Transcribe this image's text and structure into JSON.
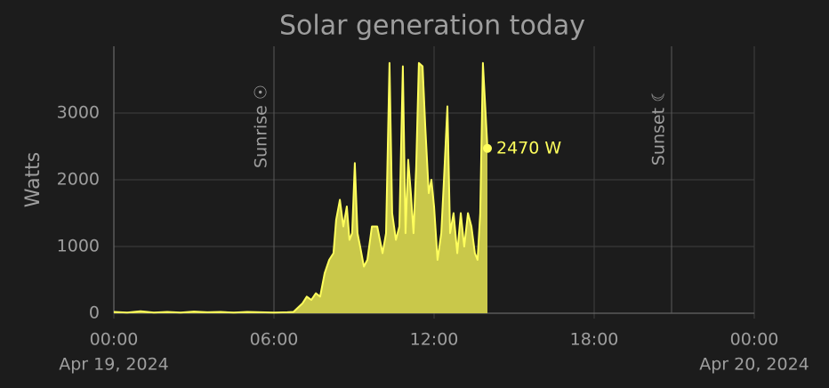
{
  "chart_data": {
    "type": "area",
    "title": "Solar generation today",
    "y_label": "Watts",
    "color": "#ffff5c",
    "fill": "#c9c84a",
    "grid": true,
    "xlim": [
      0,
      24
    ],
    "xticks": [
      {
        "value": 0,
        "label": "00:00"
      },
      {
        "value": 6,
        "label": "06:00"
      },
      {
        "value": 12,
        "label": "12:00"
      },
      {
        "value": 18,
        "label": "18:00"
      },
      {
        "value": 24,
        "label": "00:00"
      }
    ],
    "x_dates": [
      {
        "value": 0,
        "label": "Apr 19, 2024"
      },
      {
        "value": 24,
        "label": "Apr 20, 2024"
      }
    ],
    "ylim": [
      0,
      4000
    ],
    "yticks": [
      0,
      1000,
      2000,
      3000
    ],
    "x": [
      0,
      0.5,
      1,
      1.5,
      2,
      2.5,
      3,
      3.5,
      4,
      4.5,
      5,
      5.5,
      6,
      6.5,
      6.73,
      7.07,
      7.23,
      7.4,
      7.57,
      7.73,
      7.9,
      8.07,
      8.23,
      8.33,
      8.47,
      8.6,
      8.73,
      8.83,
      8.93,
      9.03,
      9.13,
      9.23,
      9.37,
      9.5,
      9.67,
      9.87,
      10.07,
      10.2,
      10.33,
      10.43,
      10.57,
      10.7,
      10.83,
      10.93,
      11.03,
      11.13,
      11.23,
      11.33,
      11.43,
      11.57,
      11.67,
      11.8,
      11.9,
      12,
      12.13,
      12.27,
      12.37,
      12.5,
      12.6,
      12.73,
      12.87,
      13,
      13.13,
      13.27,
      13.4,
      13.53,
      13.63,
      13.73,
      13.83,
      13.93,
      14
    ],
    "values": [
      20,
      10,
      30,
      10,
      20,
      10,
      25,
      15,
      20,
      10,
      20,
      15,
      10,
      15,
      20,
      150,
      250,
      200,
      300,
      250,
      600,
      800,
      900,
      1400,
      1700,
      1300,
      1600,
      1100,
      1200,
      2250,
      1200,
      1000,
      700,
      800,
      1300,
      1300,
      900,
      1200,
      3750,
      1500,
      1100,
      1300,
      3700,
      1200,
      2300,
      1800,
      1200,
      2200,
      3750,
      3700,
      2800,
      1800,
      2000,
      1600,
      800,
      1200,
      2000,
      3100,
      1200,
      1500,
      900,
      1500,
      1000,
      1500,
      1300,
      900,
      800,
      1500,
      3750,
      3000,
      2470
    ],
    "annotations": [
      {
        "x": 6,
        "label": "Sunrise ☉"
      },
      {
        "x": 20.9,
        "label": "Sunset ☾"
      }
    ],
    "current": {
      "x": 14,
      "value": 2470,
      "value_label": "2470 W"
    }
  }
}
